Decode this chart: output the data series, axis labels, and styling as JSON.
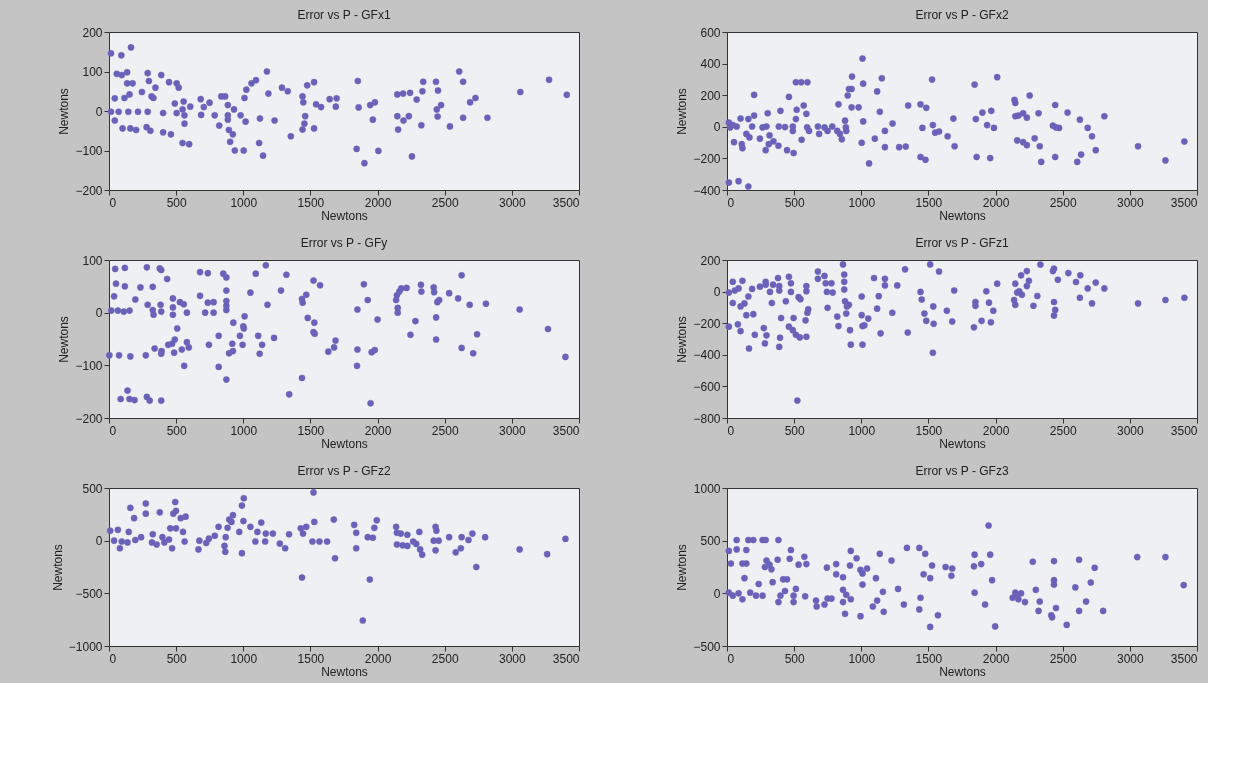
{
  "chart_data": [
    {
      "type": "scatter",
      "title": "Error vs P - GFx1",
      "xlabel": "Newtons",
      "ylabel": "Newtons",
      "color": "#6a62b8",
      "marker": "circle",
      "xlim": [
        0,
        3500
      ],
      "xticks": [
        0,
        500,
        1000,
        1500,
        2000,
        2500,
        3000,
        3500
      ],
      "ylim": [
        -200,
        200
      ],
      "yticks": [
        -200,
        -100,
        0,
        100,
        200
      ],
      "x": [
        15,
        92,
        164,
        58,
        95,
        135,
        135,
        176,
        43,
        115,
        153,
        15,
        72,
        144,
        216,
        288,
        43,
        101,
        159,
        202,
        245,
        288,
        297,
        317,
        346,
        331,
        280,
        308,
        389,
        403,
        403,
        461,
        447,
        504,
        519,
        490,
        504,
        548,
        562,
        556,
        562,
        548,
        597,
        605,
        683,
        686,
        706,
        749,
        787,
        821,
        836,
        865,
        885,
        885,
        885,
        893,
        922,
        902,
        937,
        931,
        980,
        1003,
        1009,
        1023,
        1017,
        1061,
        1095,
        1124,
        1118,
        1147,
        1176,
        1187,
        1233,
        1288,
        1331,
        1354,
        1441,
        1447,
        1441,
        1476,
        1527,
        1455,
        1461,
        1527,
        1542,
        1579,
        1643,
        1695,
        1689,
        1853,
        1859,
        1844,
        1902,
        1945,
        1980,
        1965,
        2006,
        2147,
        2190,
        2242,
        2147,
        2153,
        2193,
        2233,
        2256,
        2291,
        2326,
        2334,
        2340,
        2435,
        2450,
        2441,
        2473,
        2447,
        2539,
        2608,
        2637,
        2637,
        2689,
        2729,
        2818,
        3063,
        3277,
        3409
      ],
      "values": [
        146,
        141,
        161,
        94,
        91,
        98,
        70,
        70,
        32,
        33,
        42,
        -2,
        -2,
        -2,
        -2,
        -2,
        -24,
        -44,
        -44,
        -48,
        48,
        96,
        76,
        37,
        59,
        33,
        -41,
        -50,
        91,
        -5,
        -54,
        -59,
        73,
        70,
        59,
        19,
        -5,
        4,
        -11,
        24,
        -32,
        -81,
        -84,
        11,
        30,
        -10,
        10,
        21,
        -11,
        -37,
        37,
        37,
        15,
        -11,
        -22,
        -48,
        -59,
        -78,
        -100,
        4,
        -11,
        -100,
        33,
        54,
        -27,
        70,
        78,
        -19,
        -81,
        -113,
        100,
        44,
        -24,
        59,
        50,
        -64,
        37,
        22,
        -47,
        65,
        73,
        -32,
        -13,
        -44,
        17,
        10,
        30,
        32,
        11,
        76,
        9,
        -96,
        -132,
        15,
        22,
        -22,
        -101,
        42,
        44,
        46,
        -13,
        -47,
        -24,
        -13,
        -115,
        29,
        -36,
        50,
        74,
        74,
        52,
        4,
        15,
        -14,
        -39,
        100,
        74,
        -17,
        22,
        33,
        -17,
        48,
        79,
        41
      ]
    },
    {
      "type": "scatter",
      "title": "Error vs P - GFx2",
      "xlabel": "Newtons",
      "ylabel": "Newtons",
      "color": "#6a62b8",
      "marker": "circle",
      "xlim": [
        0,
        3500
      ],
      "xticks": [
        0,
        500,
        1000,
        1500,
        2000,
        2500,
        3000,
        3500
      ],
      "ylim": [
        -400,
        600
      ],
      "yticks": [
        -400,
        -200,
        0,
        200,
        400,
        600
      ],
      "x": [
        14,
        43,
        72,
        23,
        14,
        86,
        159,
        101,
        202,
        202,
        159,
        52,
        110,
        115,
        144,
        167,
        187,
        245,
        265,
        288,
        294,
        303,
        317,
        311,
        346,
        383,
        398,
        386,
        432,
        447,
        461,
        490,
        490,
        496,
        513,
        519,
        513,
        553,
        599,
        556,
        571,
        591,
        597,
        611,
        677,
        686,
        726,
        749,
        784,
        821,
        830,
        841,
        855,
        879,
        885,
        888,
        899,
        908,
        928,
        931,
        928,
        980,
        1009,
        1014,
        1014,
        1003,
        1058,
        1101,
        1118,
        1138,
        1153,
        1176,
        1176,
        1233,
        1282,
        1331,
        1349,
        1441,
        1455,
        1441,
        1478,
        1484,
        1527,
        1533,
        1550,
        1579,
        1643,
        1686,
        1695,
        1844,
        1853,
        1859,
        1902,
        1937,
        1960,
        1968,
        1988,
        2012,
        2141,
        2147,
        2147,
        2170,
        2205,
        2233,
        2161,
        2205,
        2233,
        2254,
        2291,
        2320,
        2329,
        2340,
        2427,
        2450,
        2473,
        2444,
        2444,
        2536,
        2628,
        2637,
        2608,
        2686,
        2718,
        2746,
        2810,
        3061,
        3265,
        3406
      ],
      "values": [
        26,
        11,
        2,
        -4,
        -353,
        -344,
        -378,
        52,
        202,
        71,
        49,
        -97,
        -110,
        -135,
        -45,
        -67,
        2,
        -75,
        -4,
        -148,
        2,
        86,
        -54,
        -110,
        -92,
        -120,
        101,
        2,
        -2,
        -148,
        189,
        -26,
        2,
        -166,
        49,
        108,
        282,
        282,
        282,
        -82,
        135,
        82,
        -4,
        -26,
        2,
        -45,
        -4,
        -26,
        2,
        -26,
        142,
        -45,
        -79,
        39,
        -4,
        -26,
        198,
        239,
        239,
        318,
        123,
        123,
        432,
        273,
        34,
        -101,
        -232,
        -75,
        224,
        95,
        307,
        -26,
        -129,
        21,
        -129,
        -125,
        135,
        142,
        -7,
        -191,
        -209,
        120,
        299,
        11,
        -37,
        -30,
        -60,
        52,
        -123,
        267,
        49,
        -191,
        90,
        11,
        -198,
        101,
        -7,
        314,
        170,
        151,
        67,
        71,
        86,
        58,
        -86,
        -97,
        -116,
        198,
        -73,
        86,
        -123,
        -222,
        7,
        -4,
        -7,
        138,
        -191,
        90,
        45,
        -176,
        -222,
        -7,
        -60,
        -148,
        67,
        -123,
        -213,
        -93
      ]
    },
    {
      "type": "scatter",
      "title": "Error vs P - GFy",
      "xlabel": "Newtons",
      "ylabel": "Newtons",
      "color": "#6a62b8",
      "marker": "circle",
      "xlim": [
        0,
        3500
      ],
      "xticks": [
        0,
        500,
        1000,
        1500,
        2000,
        2500,
        3000,
        3500
      ],
      "ylim": [
        -200,
        100
      ],
      "yticks": [
        -200,
        -100,
        0,
        100
      ],
      "x": [
        46,
        118,
        52,
        118,
        38,
        17,
        66,
        110,
        153,
        196,
        234,
        3,
        75,
        159,
        87,
        138,
        153,
        190,
        274,
        282,
        326,
        326,
        332,
        288,
        378,
        389,
        384,
        389,
        340,
        389,
        392,
        282,
        303,
        389,
        433,
        441,
        470,
        476,
        476,
        476,
        485,
        490,
        508,
        528,
        557,
        580,
        542,
        560,
        580,
        594,
        678,
        736,
        678,
        736,
        716,
        779,
        744,
        779,
        817,
        817,
        851,
        874,
        874,
        874,
        874,
        874,
        874,
        894,
        923,
        918,
        926,
        975,
        995,
        1010,
        1000,
        1004,
        1053,
        1093,
        1111,
        1122,
        1140,
        1168,
        1180,
        1229,
        1281,
        1321,
        1342,
        1437,
        1442,
        1437,
        1469,
        1480,
        1523,
        1529,
        1523,
        1532,
        1572,
        1633,
        1676,
        1687,
        1847,
        1850,
        1850,
        1898,
        1927,
        1948,
        1956,
        1979,
        2000,
        2138,
        2144,
        2150,
        2150,
        2162,
        2176,
        2216,
        2245,
        2282,
        2323,
        2326,
        2418,
        2421,
        2436,
        2436,
        2445,
        2459,
        2533,
        2600,
        2626,
        2626,
        2686,
        2712,
        2741,
        2807,
        3058,
        3269,
        3399
      ],
      "values": [
        83,
        85,
        55,
        50,
        31,
        4,
        4,
        2,
        4,
        25,
        48,
        -81,
        -81,
        -83,
        -164,
        -148,
        -164,
        -166,
        -81,
        86,
        49,
        5,
        -4,
        15,
        84,
        81,
        15,
        2,
        -68,
        -78,
        -73,
        -160,
        -167,
        -167,
        64,
        -61,
        -59,
        27,
        10,
        -4,
        -76,
        -51,
        -30,
        20,
        16,
        0,
        -70,
        -101,
        -56,
        -66,
        77,
        75,
        32,
        19,
        0,
        0,
        -61,
        20,
        -44,
        -103,
        74,
        67,
        42,
        22,
        13,
        5,
        -127,
        -77,
        -73,
        -59,
        -19,
        -44,
        -61,
        -7,
        -26,
        -30,
        38,
        74,
        -44,
        -78,
        -61,
        90,
        15,
        -48,
        42,
        72,
        -155,
        26,
        19,
        -124,
        34,
        -10,
        61,
        -19,
        -37,
        -40,
        52,
        -74,
        -66,
        -53,
        -101,
        6,
        -70,
        54,
        24,
        -172,
        -75,
        -71,
        -13,
        24,
        33,
        9,
        0,
        40,
        46,
        47,
        -42,
        -16,
        53,
        40,
        48,
        39,
        -9,
        -51,
        20,
        24,
        37,
        27,
        71,
        -67,
        15,
        -77,
        -41,
        17,
        6,
        -31,
        -84
      ]
    },
    {
      "type": "scatter",
      "title": "Error vs P - GFz1",
      "xlabel": "Newtons",
      "ylabel": "Newtons",
      "color": "#6a62b8",
      "marker": "circle",
      "xlim": [
        0,
        3500
      ],
      "xticks": [
        0,
        500,
        1000,
        1500,
        2000,
        2500,
        3000,
        3500
      ],
      "ylim": [
        -800,
        200
      ],
      "yticks": [
        -800,
        -600,
        -400,
        -200,
        0,
        200
      ],
      "x": [
        14,
        43,
        58,
        14,
        43,
        86,
        101,
        115,
        130,
        144,
        81,
        101,
        159,
        164,
        187,
        196,
        207,
        245,
        274,
        288,
        288,
        282,
        294,
        320,
        334,
        343,
        380,
        389,
        395,
        403,
        389,
        389,
        438,
        461,
        476,
        476,
        461,
        490,
        496,
        513,
        524,
        533,
        547,
        542,
        591,
        591,
        585,
        599,
        605,
        591,
        677,
        677,
        726,
        735,
        744,
        749,
        778,
        787,
        821,
        830,
        864,
        873,
        873,
        873,
        879,
        888,
        893,
        908,
        916,
        922,
        1003,
        1003,
        1009,
        1009,
        1023,
        1052,
        1095,
        1118,
        1130,
        1144,
        1176,
        1176,
        1231,
        1268,
        1326,
        1346,
        1441,
        1450,
        1470,
        1484,
        1513,
        1533,
        1536,
        1539,
        1579,
        1637,
        1677,
        1692,
        1839,
        1850,
        1850,
        1896,
        1931,
        1951,
        1965,
        1983,
        2012,
        2138,
        2147,
        2147,
        2161,
        2176,
        2196,
        2190,
        2233,
        2233,
        2248,
        2282,
        2311,
        2334,
        2427,
        2435,
        2435,
        2444,
        2435,
        2464,
        2542,
        2599,
        2631,
        2628,
        2686,
        2718,
        2746,
        2810,
        3061,
        3265,
        3406
      ],
      "values": [
        -6,
        62,
        7,
        -222,
        -72,
        20,
        -94,
        68,
        -75,
        -149,
        -207,
        -250,
        -31,
        -360,
        17,
        -143,
        -273,
        31,
        -231,
        44,
        62,
        -328,
        -277,
        -2,
        -72,
        44,
        86,
        -350,
        -292,
        -167,
        35,
        7,
        -61,
        94,
        53,
        -2,
        -222,
        -244,
        -167,
        -273,
        -690,
        -35,
        -48,
        -290,
        35,
        2,
        -182,
        -134,
        -112,
        -286,
        127,
        81,
        99,
        53,
        -2,
        -103,
        53,
        -6,
        -158,
        -218,
        172,
        108,
        62,
        13,
        -61,
        -139,
        -94,
        -84,
        -244,
        -336,
        -31,
        -149,
        -218,
        -336,
        -213,
        -171,
        86,
        -108,
        -29,
        -264,
        81,
        39,
        -134,
        39,
        141,
        -259,
        -2,
        -50,
        -139,
        -185,
        172,
        -387,
        -94,
        -204,
        127,
        -121,
        -189,
        7,
        -226,
        -66,
        -90,
        -185,
        2,
        -70,
        -194,
        -121,
        50,
        -53,
        -84,
        50,
        -6,
        2,
        -20,
        103,
        130,
        35,
        68,
        -90,
        -28,
        171,
        130,
        145,
        -66,
        -116,
        -152,
        75,
        117,
        61,
        103,
        -39,
        20,
        -75,
        57,
        20,
        -75,
        -53,
        -39
      ]
    },
    {
      "type": "scatter",
      "title": "Error vs P - GFz2",
      "xlabel": "Newtons",
      "ylabel": "Newtons",
      "color": "#6a62b8",
      "marker": "circle",
      "xlim": [
        0,
        3500
      ],
      "xticks": [
        0,
        500,
        1000,
        1500,
        2000,
        2500,
        3000,
        3500
      ],
      "ylim": [
        -1000,
        500
      ],
      "yticks": [
        -1000,
        -500,
        0,
        500
      ],
      "x": [
        9,
        66,
        147,
        159,
        187,
        38,
        95,
        81,
        138,
        196,
        239,
        274,
        274,
        320,
        326,
        355,
        378,
        398,
        412,
        447,
        456,
        470,
        479,
        493,
        499,
        499,
        534,
        571,
        551,
        563,
        666,
        673,
        724,
        744,
        788,
        816,
        860,
        866,
        869,
        883,
        895,
        923,
        912,
        970,
        990,
        1004,
        990,
        1001,
        1053,
        1090,
        1105,
        1134,
        1163,
        1168,
        1220,
        1272,
        1312,
        1341,
        1428,
        1437,
        1445,
        1469,
        1523,
        1529,
        1515,
        1567,
        1624,
        1674,
        1683,
        1826,
        1841,
        1841,
        1927,
        1942,
        1965,
        1976,
        1994,
        1890,
        2138,
        2144,
        2173,
        2144,
        2187,
        2222,
        2222,
        2265,
        2288,
        2311,
        2317,
        2332,
        2432,
        2438,
        2418,
        2455,
        2432,
        2533,
        2582,
        2620,
        2626,
        2677,
        2706,
        2735,
        2801,
        3058,
        3263,
        3399
      ],
      "values": [
        94,
        103,
        83,
        311,
        214,
        0,
        -8,
        -72,
        -17,
        6,
        33,
        353,
        256,
        -17,
        61,
        -36,
        269,
        33,
        -17,
        11,
        117,
        -72,
        256,
        367,
        117,
        283,
        214,
        228,
        83,
        -8,
        -83,
        0,
        -22,
        19,
        47,
        131,
        -50,
        -106,
        33,
        122,
        200,
        242,
        178,
        83,
        333,
        403,
        -119,
        186,
        131,
        -8,
        83,
        172,
        -8,
        67,
        67,
        -28,
        -72,
        61,
        117,
        -350,
        67,
        131,
        458,
        178,
        -8,
        -8,
        -8,
        200,
        -167,
        150,
        75,
        -72,
        33,
        -369,
        28,
        122,
        194,
        -758,
        131,
        75,
        67,
        -36,
        -44,
        -50,
        56,
        -8,
        -31,
        83,
        -83,
        -133,
        131,
        94,
        0,
        0,
        -92,
        33,
        -111,
        -72,
        33,
        6,
        67,
        -250,
        33,
        -83,
        -128,
        17
      ]
    },
    {
      "type": "scatter",
      "title": "Error vs P - GFz3",
      "xlabel": "Newtons",
      "ylabel": "Newtons",
      "color": "#6a62b8",
      "marker": "circle",
      "xlim": [
        0,
        3500
      ],
      "xticks": [
        0,
        500,
        1000,
        1500,
        2000,
        2500,
        3000,
        3500
      ],
      "ylim": [
        -500,
        1000
      ],
      "yticks": [
        -500,
        0,
        500,
        1000
      ],
      "x": [
        14,
        14,
        43,
        29,
        72,
        72,
        86,
        115,
        115,
        130,
        144,
        159,
        144,
        173,
        196,
        216,
        236,
        265,
        265,
        288,
        282,
        294,
        317,
        331,
        340,
        377,
        383,
        383,
        398,
        418,
        447,
        432,
        467,
        476,
        496,
        496,
        513,
        533,
        576,
        582,
        591,
        663,
        668,
        726,
        744,
        749,
        778,
        813,
        813,
        864,
        864,
        864,
        879,
        888,
        916,
        922,
        922,
        965,
        994,
        994,
        1009,
        1009,
        1043,
        1086,
        1109,
        1118,
        1138,
        1161,
        1167,
        1225,
        1274,
        1317,
        1340,
        1432,
        1441,
        1432,
        1476,
        1464,
        1513,
        1513,
        1527,
        1571,
        1628,
        1677,
        1671,
        1839,
        1844,
        1844,
        1893,
        1922,
        1948,
        1960,
        1974,
        1997,
        2127,
        2147,
        2161,
        2170,
        2190,
        2219,
        2277,
        2300,
        2320,
        2329,
        2415,
        2421,
        2435,
        2435,
        2435,
        2450,
        2530,
        2594,
        2622,
        2622,
        2674,
        2709,
        2738,
        2801,
        3055,
        3265,
        3401
      ],
      "values": [
        403,
        6,
        -22,
        283,
        417,
        506,
        0,
        -56,
        283,
        144,
        411,
        506,
        283,
        6,
        506,
        -22,
        89,
        -22,
        506,
        506,
        250,
        311,
        272,
        228,
        106,
        319,
        506,
        -83,
        -22,
        133,
        133,
        22,
        328,
        411,
        -22,
        -83,
        42,
        272,
        347,
        -28,
        278,
        -69,
        -125,
        -106,
        244,
        -50,
        -50,
        278,
        181,
        153,
        33,
        -83,
        -194,
        -14,
        264,
        403,
        -56,
        333,
        -217,
        222,
        189,
        83,
        236,
        -125,
        144,
        -69,
        375,
        14,
        -175,
        311,
        42,
        -106,
        431,
        431,
        -42,
        -153,
        375,
        181,
        144,
        -319,
        264,
        -208,
        250,
        236,
        167,
        256,
        367,
        6,
        278,
        -106,
        644,
        367,
        125,
        -314,
        -42,
        6,
        -14,
        -56,
        0,
        -83,
        300,
        33,
        -167,
        -78,
        -208,
        -228,
        306,
        125,
        83,
        -139,
        -300,
        56,
        319,
        -167,
        -78,
        103,
        242,
        -167,
        344,
        344,
        78
      ]
    }
  ]
}
